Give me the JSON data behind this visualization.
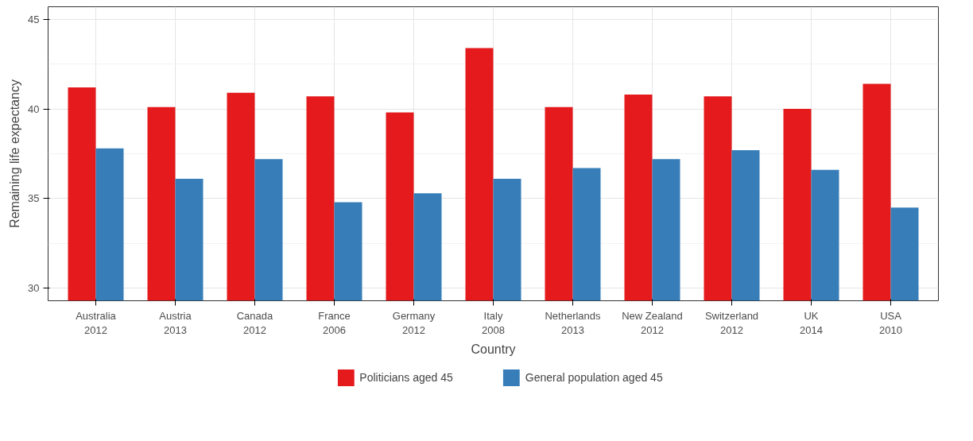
{
  "chart_data": {
    "type": "bar",
    "xlabel": "Country",
    "ylabel": "Remaining life expectancy",
    "categories": [
      "Australia\n2012",
      "Austria\n2013",
      "Canada\n2012",
      "France\n2006",
      "Germany\n2012",
      "Italy\n2008",
      "Netherlands\n2013",
      "New Zealand\n2012",
      "Switzerland\n2012",
      "UK\n2014",
      "USA\n2010"
    ],
    "series": [
      {
        "name": "Politicians aged 45",
        "color": "#e41a1c",
        "values": [
          41.2,
          40.1,
          40.9,
          40.7,
          39.8,
          43.4,
          40.1,
          40.8,
          40.7,
          40.0,
          41.4
        ]
      },
      {
        "name": "General population aged 45",
        "color": "#377eb8",
        "values": [
          37.8,
          36.1,
          37.2,
          34.8,
          35.3,
          36.1,
          36.7,
          37.2,
          37.7,
          36.6,
          34.5
        ]
      }
    ],
    "ylim": [
      29.3,
      45.7
    ],
    "yticks": [
      30,
      35,
      40,
      45
    ],
    "grid": true,
    "legend": "bottom"
  }
}
